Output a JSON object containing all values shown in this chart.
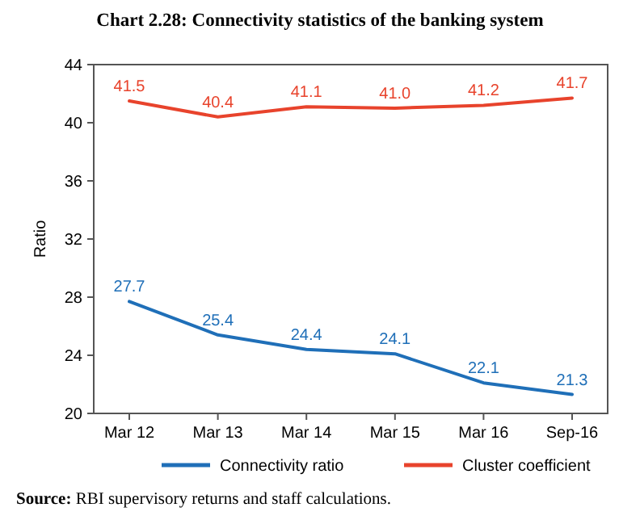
{
  "chart_data": {
    "type": "line",
    "title": "Chart 2.28: Connectivity statistics of the banking system",
    "ylabel": "Ratio",
    "categories": [
      "Mar 12",
      "Mar 13",
      "Mar 14",
      "Mar 15",
      "Mar 16",
      "Sep-16"
    ],
    "series": [
      {
        "name": "Connectivity ratio",
        "color": "#1f6fb8",
        "values": [
          27.7,
          25.4,
          24.4,
          24.1,
          22.1,
          21.3
        ]
      },
      {
        "name": "Cluster coefficient",
        "color": "#e8432c",
        "values": [
          41.5,
          40.4,
          41.1,
          41.0,
          41.2,
          41.7
        ],
        "value_labels": [
          "41.5",
          "40.4",
          "41.1",
          "41.0",
          "41.2",
          "41.7"
        ]
      }
    ],
    "ylim": [
      20,
      44
    ],
    "yticks": [
      20,
      24,
      28,
      32,
      36,
      40,
      44
    ],
    "data_labels": true,
    "legend": "bottom",
    "annotations": [
      "Source: RBI supervisory returns and staff calculations."
    ]
  }
}
